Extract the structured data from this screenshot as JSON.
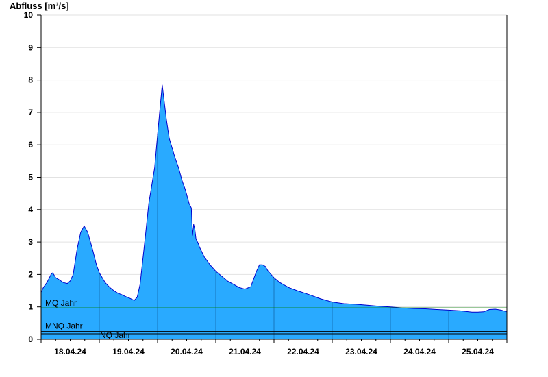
{
  "chart_data": {
    "type": "area",
    "ylabel": "Abfluss [m³/s]",
    "ylim": [
      0,
      10
    ],
    "yticks": [
      0,
      1,
      2,
      3,
      4,
      5,
      6,
      7,
      8,
      9,
      10
    ],
    "x_tick_labels": [
      "18.04.24",
      "19.04.24",
      "20.04.24",
      "21.04.24",
      "22.04.24",
      "23.04.24",
      "24.04.24",
      "25.04.24"
    ],
    "x_range_days": [
      0,
      8
    ],
    "x_unit": "days from 17.04.24 18:00",
    "fill_color": "#29aaff",
    "line_color": "#0000cc",
    "grid": "horizontal",
    "series": [
      {
        "x": [
          0.0,
          0.04,
          0.1,
          0.17,
          0.2,
          0.25,
          0.3,
          0.38,
          0.45,
          0.5,
          0.55,
          0.62,
          0.68,
          0.74,
          0.8,
          0.88,
          0.95,
          1.0,
          1.05,
          1.1,
          1.18,
          1.25,
          1.32,
          1.38,
          1.45,
          1.52,
          1.6,
          1.65,
          1.7,
          1.78,
          1.85,
          1.95,
          2.0,
          2.08,
          2.15,
          2.2,
          2.25,
          2.3,
          2.36,
          2.42,
          2.48,
          2.54,
          2.58,
          2.6,
          2.62,
          2.64,
          2.66,
          2.7,
          2.72,
          2.76,
          2.8,
          2.9,
          3.0,
          3.1,
          3.2,
          3.3,
          3.4,
          3.5,
          3.6,
          3.7,
          3.75,
          3.8,
          3.85,
          3.9,
          3.95,
          4.0,
          4.1,
          4.25,
          4.4,
          4.6,
          4.8,
          5.0,
          5.2,
          5.4,
          5.6,
          5.8,
          6.0,
          6.2,
          6.4,
          6.6,
          6.8,
          7.0,
          7.2,
          7.4,
          7.5,
          7.6,
          7.7,
          7.8,
          7.9,
          8.0
        ],
        "y": [
          1.45,
          1.6,
          1.75,
          2.0,
          2.05,
          1.9,
          1.85,
          1.75,
          1.72,
          1.8,
          2.0,
          2.8,
          3.3,
          3.5,
          3.3,
          2.8,
          2.3,
          2.05,
          1.9,
          1.75,
          1.6,
          1.5,
          1.42,
          1.38,
          1.32,
          1.27,
          1.2,
          1.3,
          1.7,
          3.0,
          4.2,
          5.3,
          6.3,
          7.85,
          6.8,
          6.2,
          5.9,
          5.6,
          5.3,
          4.9,
          4.6,
          4.2,
          4.05,
          3.2,
          3.55,
          3.4,
          3.1,
          2.95,
          2.85,
          2.7,
          2.55,
          2.3,
          2.1,
          1.95,
          1.8,
          1.7,
          1.6,
          1.55,
          1.62,
          2.1,
          2.3,
          2.3,
          2.25,
          2.1,
          2.0,
          1.9,
          1.75,
          1.6,
          1.5,
          1.38,
          1.25,
          1.15,
          1.1,
          1.08,
          1.05,
          1.02,
          1.0,
          0.97,
          0.95,
          0.94,
          0.92,
          0.9,
          0.88,
          0.84,
          0.84,
          0.85,
          0.92,
          0.93,
          0.9,
          0.85
        ]
      }
    ],
    "reference_lines": [
      {
        "label": "MQ Jahr",
        "value": 0.97,
        "color": "#008000"
      },
      {
        "label": "MNQ Jahr",
        "value": 0.24,
        "color": "#000000"
      },
      {
        "label": "NQ Jahr",
        "value": 0.17,
        "color": "#000000"
      }
    ]
  }
}
